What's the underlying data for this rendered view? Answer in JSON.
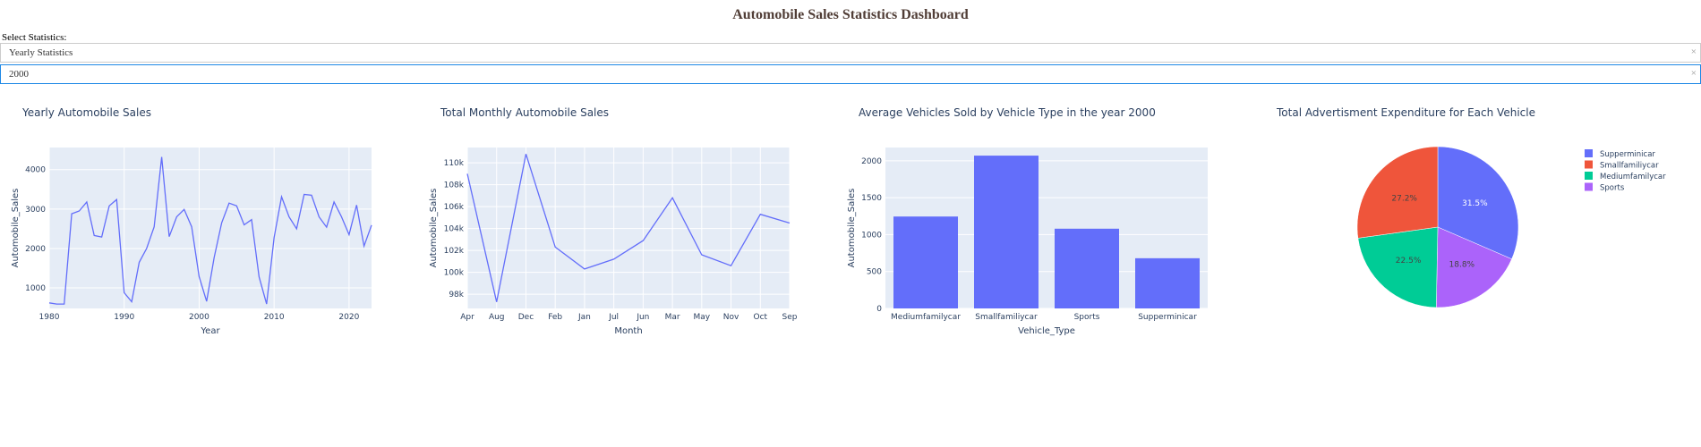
{
  "page": {
    "title": "Automobile Sales Statistics Dashboard",
    "select_label": "Select Statistics:"
  },
  "dropdowns": {
    "statistics": {
      "value": "Yearly Statistics",
      "clear_glyph": "×"
    },
    "year": {
      "value": "2000",
      "clear_glyph": "×"
    }
  },
  "colors": {
    "accent": "#636efa",
    "plot_bg": "#e5ecf6",
    "title_color": "#503d36"
  },
  "chart_data": [
    {
      "type": "line",
      "title": "Yearly Automobile Sales",
      "xlabel": "Year",
      "ylabel": "Automobile_Sales",
      "x": [
        1980,
        1981,
        1982,
        1983,
        1984,
        1985,
        1986,
        1987,
        1988,
        1989,
        1990,
        1991,
        1992,
        1993,
        1994,
        1995,
        1996,
        1997,
        1998,
        1999,
        2000,
        2001,
        2002,
        2003,
        2004,
        2005,
        2006,
        2007,
        2008,
        2009,
        2010,
        2011,
        2012,
        2013,
        2014,
        2015,
        2016,
        2017,
        2018,
        2019,
        2020,
        2021,
        2022,
        2023
      ],
      "y": [
        620,
        590,
        590,
        2880,
        2950,
        3180,
        2330,
        2290,
        3080,
        3240,
        880,
        650,
        1650,
        2000,
        2550,
        4320,
        2300,
        2800,
        2990,
        2550,
        1290,
        660,
        1770,
        2650,
        3150,
        3080,
        2600,
        2730,
        1280,
        590,
        2280,
        3310,
        2800,
        2500,
        3370,
        3350,
        2800,
        2540,
        3180,
        2800,
        2350,
        3100,
        2060,
        2590
      ],
      "xticks": [
        "1980",
        "1990",
        "2000",
        "2010",
        "2020"
      ],
      "yticks": [
        "1000",
        "2000",
        "3000",
        "4000"
      ],
      "xlim": [
        1980,
        2023
      ],
      "ylim": [
        480,
        4560
      ],
      "grid": true
    },
    {
      "type": "line",
      "title": "Total Monthly Automobile Sales",
      "xlabel": "Month",
      "ylabel": "Automobile_Sales",
      "categories": [
        "Apr",
        "Aug",
        "Dec",
        "Feb",
        "Jan",
        "Jul",
        "Jun",
        "Mar",
        "May",
        "Nov",
        "Oct",
        "Sep"
      ],
      "values": [
        109000,
        97300,
        110800,
        102300,
        100300,
        101200,
        102900,
        106800,
        101600,
        100600,
        105300,
        104500
      ],
      "yticks": [
        {
          "v": 98000,
          "label": "98k"
        },
        {
          "v": 100000,
          "label": "100k"
        },
        {
          "v": 102000,
          "label": "102k"
        },
        {
          "v": 104000,
          "label": "104k"
        },
        {
          "v": 106000,
          "label": "106k"
        },
        {
          "v": 108000,
          "label": "108k"
        },
        {
          "v": 110000,
          "label": "110k"
        }
      ],
      "ylim": [
        96700,
        111400
      ],
      "grid": true
    },
    {
      "type": "bar",
      "title": "Average Vehicles Sold by Vehicle Type in the year 2000",
      "xlabel": "Vehicle_Type",
      "ylabel": "Automobile_Sales",
      "categories": [
        "Mediumfamilycar",
        "Smallfamiliycar",
        "Sports",
        "Supperminicar"
      ],
      "values": [
        1245,
        2070,
        1080,
        680
      ],
      "yticks": [
        "0",
        "500",
        "1000",
        "1500",
        "2000"
      ],
      "ylim": [
        0,
        2180
      ],
      "grid": true
    },
    {
      "type": "pie",
      "title": "Total Advertisment Expenditure for Each Vehicle",
      "slices": [
        {
          "label": "Supperminicar",
          "value": 31.5,
          "text": "31.5%",
          "color": "#636efa",
          "text_color": "#ffffff"
        },
        {
          "label": "Sports",
          "value": 18.8,
          "text": "18.8%",
          "color": "#ab63fa",
          "text_color": "#444444"
        },
        {
          "label": "Mediumfamilycar",
          "value": 22.5,
          "text": "22.5%",
          "color": "#00cc96",
          "text_color": "#444444"
        },
        {
          "label": "Smallfamiliycar",
          "value": 27.2,
          "text": "27.2%",
          "color": "#ef553b",
          "text_color": "#444444"
        }
      ],
      "legend": [
        "Supperminicar",
        "Smallfamiliycar",
        "Mediumfamilycar",
        "Sports"
      ],
      "legend_colors": [
        "#636efa",
        "#ef553b",
        "#00cc96",
        "#ab63fa"
      ],
      "legend_position": "right"
    }
  ]
}
